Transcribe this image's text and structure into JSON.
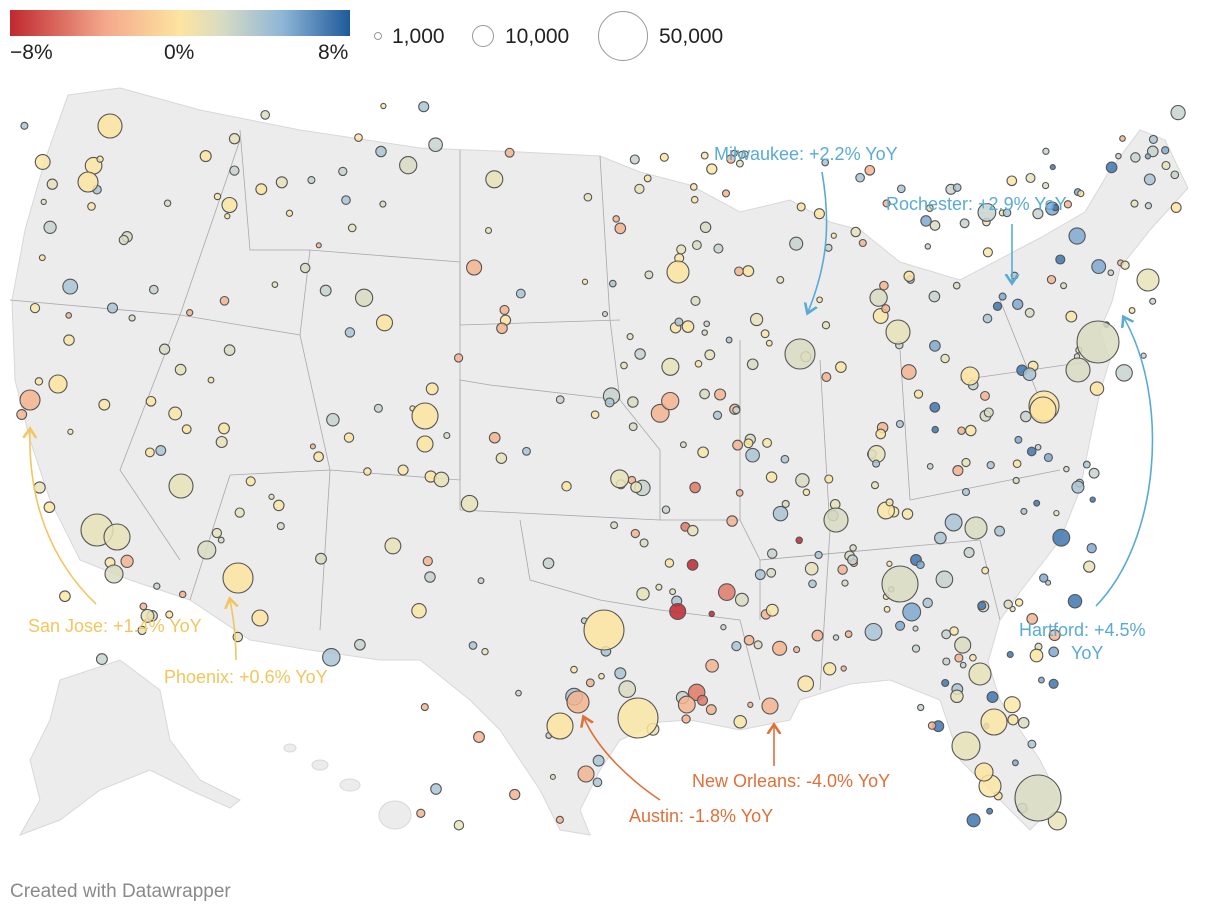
{
  "legend": {
    "color_min": "−8%",
    "color_mid": "0%",
    "color_max": "8%",
    "size_1": "1,000",
    "size_2": "10,000",
    "size_3": "50,000",
    "color_stops": [
      "#c0282f",
      "#f4a88c",
      "#fde4a0",
      "#d9dcc2",
      "#8fb6d8",
      "#1e5a9a"
    ]
  },
  "annotations": {
    "milwaukee": "Milwaukee: +2.2% YoY",
    "rochester": "Rochester: +2.9% YoY",
    "hartford_1": "Hartford: +4.5%",
    "hartford_2": "YoY",
    "san_jose": "San Jose: +1.4% YoY",
    "phoenix": "Phoenix: +0.6% YoY",
    "austin": "Austin: -1.8% YoY",
    "new_orleans": "New Orleans: -4.0% YoY"
  },
  "annotation_colors": {
    "blue": "#5aaad6",
    "yellow": "#f3c55e",
    "orange": "#e0703a"
  },
  "credit": "Created with Datawrapper",
  "map_data": {
    "type": "bubble-map",
    "color_metric": "YoY change",
    "color_domain": [
      -8,
      8
    ],
    "size_examples": [
      1000,
      10000,
      50000
    ],
    "highlighted_cities": [
      {
        "name": "Milwaukee",
        "yoy": 2.2
      },
      {
        "name": "Rochester",
        "yoy": 2.9
      },
      {
        "name": "Hartford",
        "yoy": 4.5
      },
      {
        "name": "San Jose",
        "yoy": 1.4
      },
      {
        "name": "Phoenix",
        "yoy": 0.6
      },
      {
        "name": "Austin",
        "yoy": -1.8
      },
      {
        "name": "New Orleans",
        "yoy": -4.0
      }
    ]
  }
}
